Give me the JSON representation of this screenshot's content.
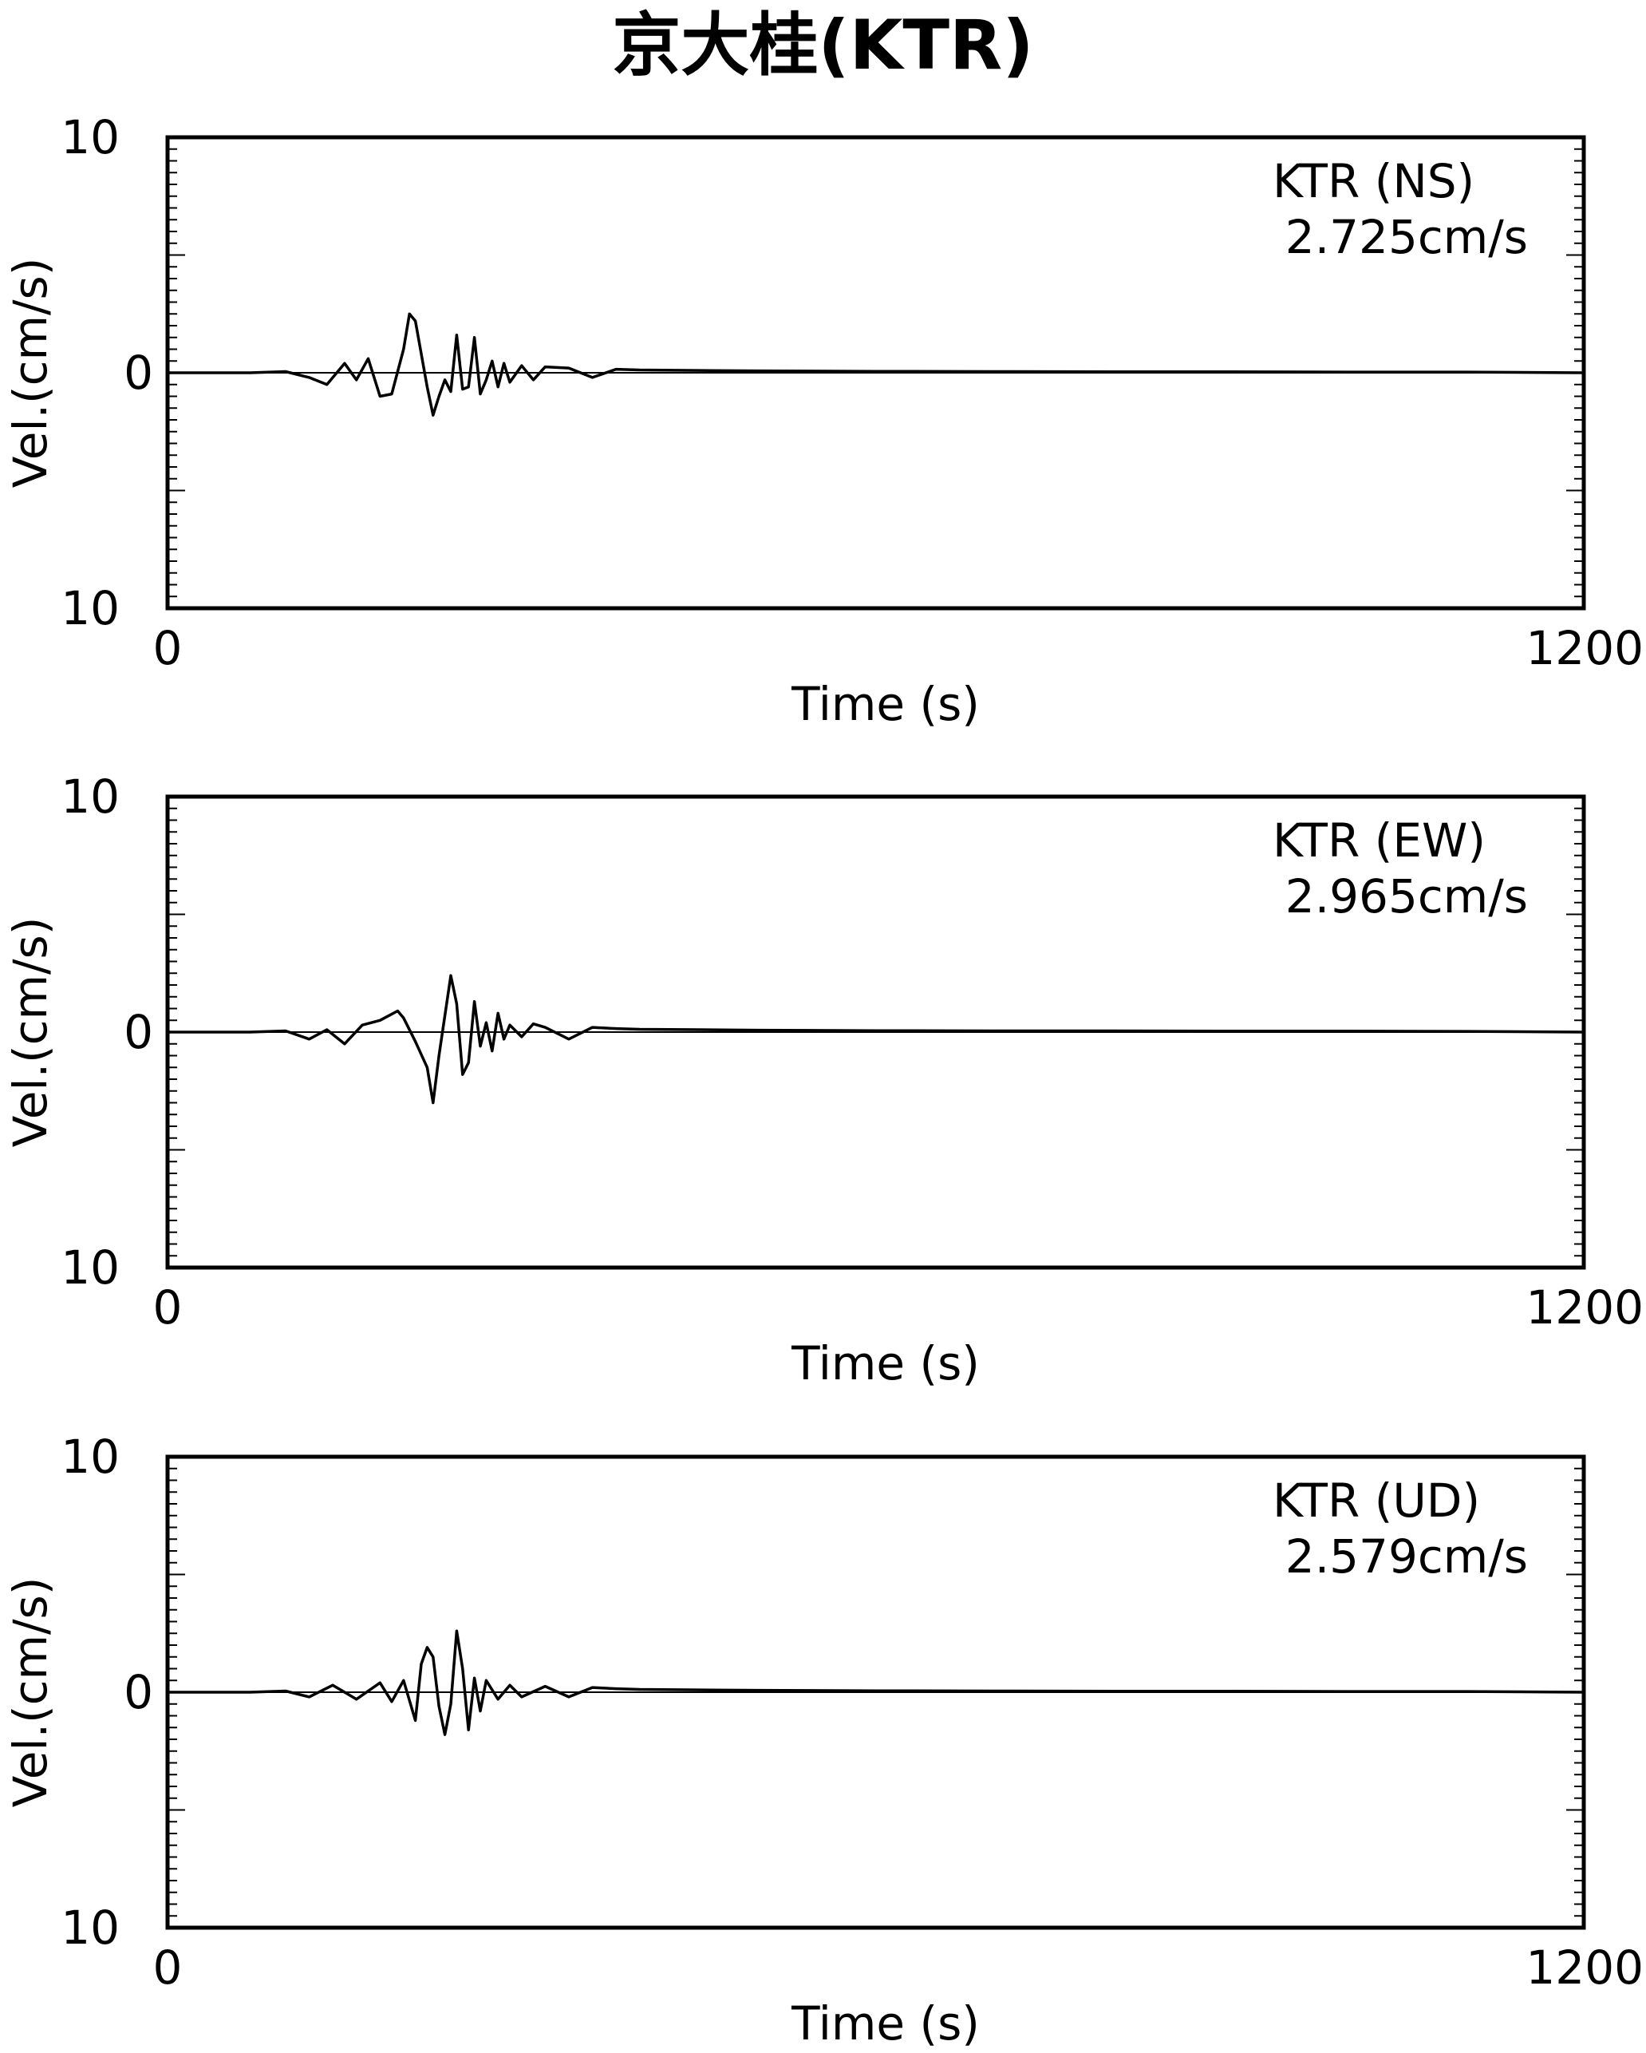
{
  "title": "京大桂(KTR)",
  "chart_data": [
    {
      "type": "line",
      "title": "",
      "annotation": "KTR  (NS)",
      "peak_label": "2.725cm/s",
      "peak": 2.725,
      "xlabel": "Time (s)",
      "ylabel": "Vel.(cm/s)",
      "xlim": [
        0,
        1200
      ],
      "ylim": [
        -10,
        10
      ],
      "x_tick_labels": [
        "0",
        "1200"
      ],
      "y_tick_labels": [
        "10",
        "0",
        "10"
      ],
      "series": [
        {
          "x": [
            0,
            70,
            100,
            120,
            135,
            150,
            160,
            170,
            180,
            190,
            200,
            205,
            210,
            220,
            225,
            230,
            235,
            240,
            245,
            250,
            255,
            260,
            265,
            270,
            275,
            280,
            285,
            290,
            300,
            310,
            320,
            340,
            360,
            380,
            400,
            450,
            500,
            600,
            700,
            800,
            900,
            1000,
            1100,
            1200
          ],
          "y": [
            0,
            0,
            0.05,
            -0.2,
            -0.5,
            0.4,
            -0.3,
            0.6,
            -1.0,
            -0.9,
            1.0,
            2.5,
            2.2,
            -0.6,
            -1.8,
            -1.0,
            -0.3,
            -0.8,
            1.6,
            -0.7,
            -0.6,
            1.5,
            -0.9,
            -0.3,
            0.5,
            -0.6,
            0.4,
            -0.4,
            0.3,
            -0.3,
            0.25,
            0.2,
            -0.2,
            0.15,
            0.12,
            0.1,
            0.08,
            0.06,
            0.05,
            0.04,
            0.04,
            0.03,
            0.03,
            0
          ]
        }
      ]
    },
    {
      "type": "line",
      "title": "",
      "annotation": "KTR  (EW)",
      "peak_label": "2.965cm/s",
      "peak": 2.965,
      "xlabel": "Time (s)",
      "ylabel": "Vel.(cm/s)",
      "xlim": [
        0,
        1200
      ],
      "ylim": [
        -10,
        10
      ],
      "x_tick_labels": [
        "0",
        "1200"
      ],
      "y_tick_labels": [
        "10",
        "0",
        "10"
      ],
      "series": [
        {
          "x": [
            0,
            70,
            100,
            120,
            135,
            150,
            165,
            180,
            195,
            200,
            210,
            220,
            225,
            230,
            240,
            245,
            250,
            255,
            260,
            265,
            270,
            275,
            280,
            285,
            290,
            300,
            310,
            320,
            340,
            360,
            380,
            400,
            450,
            500,
            600,
            700,
            800,
            900,
            1000,
            1100,
            1200
          ],
          "y": [
            0,
            0,
            0.05,
            -0.3,
            0.1,
            -0.5,
            0.3,
            0.5,
            0.9,
            0.6,
            -0.4,
            -1.5,
            -3.0,
            -1.0,
            2.4,
            1.2,
            -1.8,
            -1.3,
            1.3,
            -0.6,
            0.4,
            -0.8,
            0.8,
            -0.3,
            0.3,
            -0.2,
            0.35,
            0.2,
            -0.3,
            0.2,
            0.15,
            0.12,
            0.1,
            0.08,
            0.06,
            0.05,
            0.05,
            0.04,
            0.04,
            0.03,
            0
          ]
        }
      ]
    },
    {
      "type": "line",
      "title": "",
      "annotation": "KTR  (UD)",
      "peak_label": "2.579cm/s",
      "peak": 2.579,
      "xlabel": "Time (s)",
      "ylabel": "Vel.(cm/s)",
      "xlim": [
        0,
        1200
      ],
      "ylim": [
        -10,
        10
      ],
      "x_tick_labels": [
        "0",
        "1200"
      ],
      "y_tick_labels": [
        "10",
        "0",
        "10"
      ],
      "series": [
        {
          "x": [
            0,
            70,
            100,
            120,
            140,
            160,
            180,
            190,
            200,
            210,
            215,
            220,
            225,
            230,
            235,
            240,
            245,
            250,
            255,
            260,
            265,
            270,
            280,
            290,
            300,
            320,
            340,
            360,
            380,
            400,
            450,
            500,
            600,
            700,
            800,
            900,
            1000,
            1100,
            1200
          ],
          "y": [
            0,
            0,
            0.05,
            -0.2,
            0.3,
            -0.3,
            0.4,
            -0.4,
            0.5,
            -1.2,
            1.2,
            1.9,
            1.5,
            -0.6,
            -1.8,
            -0.5,
            2.6,
            1.0,
            -1.6,
            0.6,
            -0.8,
            0.5,
            -0.3,
            0.3,
            -0.2,
            0.25,
            -0.2,
            0.2,
            0.15,
            0.12,
            0.1,
            0.08,
            0.06,
            0.05,
            0.04,
            0.04,
            0.03,
            0.03,
            0
          ]
        }
      ]
    }
  ]
}
